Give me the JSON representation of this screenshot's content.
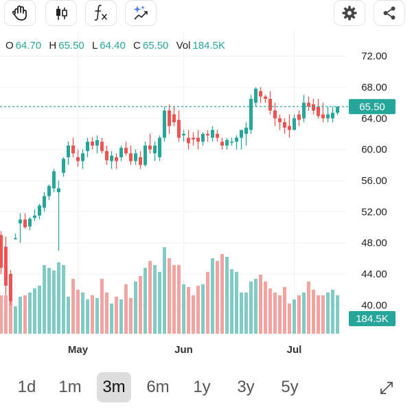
{
  "toolbar": {
    "icons": [
      "drawing-hand-icon",
      "candlestick-icon",
      "function-icon",
      "ai-sparkle-icon",
      "gear-icon",
      "share-icon"
    ]
  },
  "ohlc": {
    "o_label": "O",
    "o_value": "64.70",
    "h_label": "H",
    "h_value": "65.50",
    "l_label": "L",
    "l_value": "64.40",
    "c_label": "C",
    "c_value": "65.50",
    "vol_label": "Vol",
    "vol_value": "184.5K"
  },
  "price_tag": "65.50",
  "volume_tag": "184.5K",
  "colors": {
    "up": "#26a69a",
    "down": "#ef5350",
    "up_vol": "#80cbc4",
    "down_vol": "#f4a3a1",
    "grid": "#efefef"
  },
  "ranges": {
    "items": [
      "1d",
      "1m",
      "3m",
      "6m",
      "1y",
      "3y",
      "5y"
    ],
    "selected": "3m"
  },
  "chart_data": {
    "type": "candlestick",
    "y_ticks": [
      "72.00",
      "68.00",
      "64.00",
      "60.00",
      "56.00",
      "52.00",
      "48.00",
      "44.00",
      "40.00"
    ],
    "ylim": [
      36.5,
      73.2
    ],
    "x_tick_labels": [
      "May",
      "Jun",
      "Jul"
    ],
    "x_tick_index": [
      16,
      38,
      61
    ],
    "last_price": 65.5,
    "candles": [
      [
        49.0,
        49.5,
        44.0,
        44.8
      ],
      [
        47.5,
        48.8,
        41.3,
        42.5
      ],
      [
        44.0,
        44.5,
        40.0,
        40.5
      ],
      [
        48.5,
        49.2,
        48.4,
        48.6
      ],
      [
        50.5,
        51.8,
        48.0,
        51.0
      ],
      [
        51.0,
        51.8,
        49.8,
        50.0
      ],
      [
        50.1,
        51.3,
        49.6,
        51.1
      ],
      [
        51.2,
        52.3,
        50.8,
        51.5
      ],
      [
        51.5,
        53.0,
        51.0,
        52.8
      ],
      [
        52.5,
        54.5,
        52.0,
        54.0
      ],
      [
        54.0,
        55.5,
        53.5,
        55.3
      ],
      [
        55.0,
        57.5,
        54.5,
        57.2
      ],
      [
        54.5,
        56.0,
        47.0,
        55.0
      ],
      [
        57.0,
        59.0,
        56.5,
        58.8
      ],
      [
        59.0,
        61.0,
        58.0,
        60.5
      ],
      [
        60.5,
        61.5,
        59.0,
        59.5
      ],
      [
        59.0,
        60.0,
        57.8,
        58.5
      ],
      [
        58.5,
        60.0,
        57.5,
        59.5
      ],
      [
        59.8,
        61.5,
        59.0,
        61.0
      ],
      [
        61.0,
        61.6,
        60.0,
        60.5
      ],
      [
        60.5,
        61.8,
        59.5,
        61.2
      ],
      [
        61.0,
        61.5,
        59.5,
        59.8
      ],
      [
        59.8,
        60.5,
        58.0,
        58.6
      ],
      [
        58.5,
        59.8,
        57.5,
        59.2
      ],
      [
        59.0,
        59.5,
        57.5,
        58.5
      ],
      [
        59.0,
        60.5,
        58.5,
        60.2
      ],
      [
        60.2,
        61.0,
        59.2,
        59.5
      ],
      [
        59.5,
        60.5,
        58.0,
        58.5
      ],
      [
        58.5,
        60.0,
        58.0,
        59.5
      ],
      [
        59.0,
        59.8,
        57.5,
        58.0
      ],
      [
        58.0,
        61.0,
        57.8,
        60.5
      ],
      [
        60.5,
        62.0,
        59.5,
        60.0
      ],
      [
        59.5,
        61.0,
        58.5,
        60.5
      ],
      [
        59.0,
        61.8,
        58.5,
        61.5
      ],
      [
        61.5,
        65.5,
        61.0,
        65.0
      ],
      [
        65.0,
        65.8,
        62.0,
        63.0
      ],
      [
        64.5,
        65.5,
        63.0,
        63.5
      ],
      [
        63.8,
        65.0,
        61.0,
        61.5
      ],
      [
        61.8,
        62.5,
        61.0,
        62.0
      ],
      [
        61.5,
        62.5,
        60.0,
        60.8
      ],
      [
        61.5,
        62.2,
        60.5,
        61.3
      ],
      [
        61.5,
        62.5,
        60.0,
        61.0
      ],
      [
        61.0,
        62.2,
        60.5,
        62.0
      ],
      [
        62.0,
        62.5,
        61.0,
        61.8
      ],
      [
        61.5,
        63.0,
        61.0,
        62.5
      ],
      [
        62.0,
        62.5,
        61.0,
        61.5
      ],
      [
        61.0,
        61.5,
        60.0,
        60.5
      ],
      [
        60.5,
        61.5,
        60.0,
        61.2
      ],
      [
        61.0,
        61.5,
        60.5,
        61.0
      ],
      [
        61.0,
        61.8,
        60.0,
        61.5
      ],
      [
        61.5,
        62.5,
        60.0,
        62.5
      ],
      [
        62.0,
        63.5,
        60.5,
        62.8
      ],
      [
        62.5,
        67.0,
        62.0,
        66.5
      ],
      [
        66.0,
        68.0,
        65.5,
        67.8
      ],
      [
        67.5,
        68.0,
        66.0,
        66.8
      ],
      [
        66.8,
        67.0,
        66.0,
        66.5
      ],
      [
        66.5,
        67.5,
        64.5,
        65.0
      ],
      [
        65.0,
        66.0,
        63.0,
        64.0
      ],
      [
        64.0,
        64.5,
        62.5,
        63.5
      ],
      [
        63.5,
        64.0,
        62.0,
        62.8
      ],
      [
        63.0,
        64.5,
        61.5,
        62.5
      ],
      [
        62.5,
        64.5,
        62.5,
        64.0
      ],
      [
        64.5,
        65.0,
        63.0,
        63.8
      ],
      [
        64.0,
        67.0,
        63.5,
        66.0
      ],
      [
        66.0,
        66.8,
        65.0,
        65.5
      ],
      [
        65.8,
        66.5,
        64.5,
        65.0
      ],
      [
        65.5,
        66.5,
        64.0,
        64.3
      ],
      [
        64.5,
        66.0,
        63.5,
        64.0
      ],
      [
        64.0,
        65.5,
        63.5,
        64.5
      ],
      [
        64.0,
        65.5,
        63.5,
        64.7
      ],
      [
        64.7,
        65.5,
        64.4,
        65.5
      ]
    ],
    "volume_ratio": [
      0.28,
      0.28,
      0.25,
      0.2,
      0.27,
      0.28,
      0.3,
      0.33,
      0.35,
      0.5,
      0.48,
      0.46,
      0.52,
      0.5,
      0.27,
      0.4,
      0.32,
      0.3,
      0.25,
      0.28,
      0.26,
      0.4,
      0.3,
      0.22,
      0.27,
      0.25,
      0.36,
      0.26,
      0.38,
      0.42,
      0.48,
      0.53,
      0.5,
      0.45,
      0.63,
      0.55,
      0.5,
      0.5,
      0.36,
      0.34,
      0.28,
      0.35,
      0.36,
      0.45,
      0.55,
      0.53,
      0.58,
      0.56,
      0.47,
      0.45,
      0.3,
      0.3,
      0.38,
      0.4,
      0.43,
      0.38,
      0.33,
      0.3,
      0.28,
      0.34,
      0.22,
      0.25,
      0.28,
      0.3,
      0.38,
      0.32,
      0.28,
      0.28,
      0.3,
      0.32,
      0.28
    ]
  }
}
